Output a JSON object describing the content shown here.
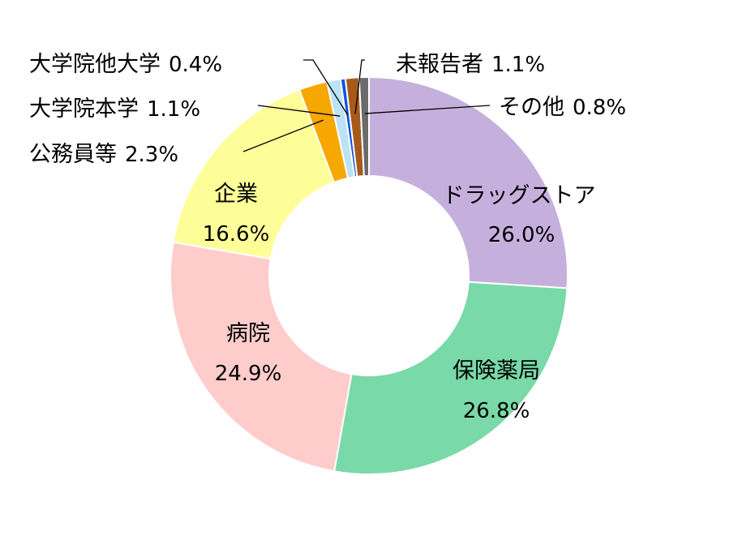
{
  "chart_data": {
    "type": "pie",
    "variant": "donut",
    "title": "",
    "slices": [
      {
        "label": "ドラッグストア",
        "value": 26.0,
        "value_label": "26.0%",
        "color": "#c5b0dd"
      },
      {
        "label": "保険薬局",
        "value": 26.8,
        "value_label": "26.8%",
        "color": "#79d9a8"
      },
      {
        "label": "病院",
        "value": 24.9,
        "value_label": "24.9%",
        "color": "#ffcccc"
      },
      {
        "label": "企業",
        "value": 16.6,
        "value_label": "16.6%",
        "color": "#fefe99"
      },
      {
        "label": "公務員等",
        "value": 2.3,
        "value_label": "2.3%",
        "color": "#f6a700"
      },
      {
        "label": "大学院本学",
        "value": 1.1,
        "value_label": "1.1%",
        "color": "#bde2f6"
      },
      {
        "label": "大学院他大学",
        "value": 0.4,
        "value_label": "0.4%",
        "color": "#1155dd"
      },
      {
        "label": "未報告者",
        "value": 1.1,
        "value_label": "1.1%",
        "color": "#a65a1a"
      },
      {
        "label": "その他",
        "value": 0.8,
        "value_label": "0.8%",
        "color": "#6b6b6b"
      }
    ],
    "legend": "none"
  }
}
